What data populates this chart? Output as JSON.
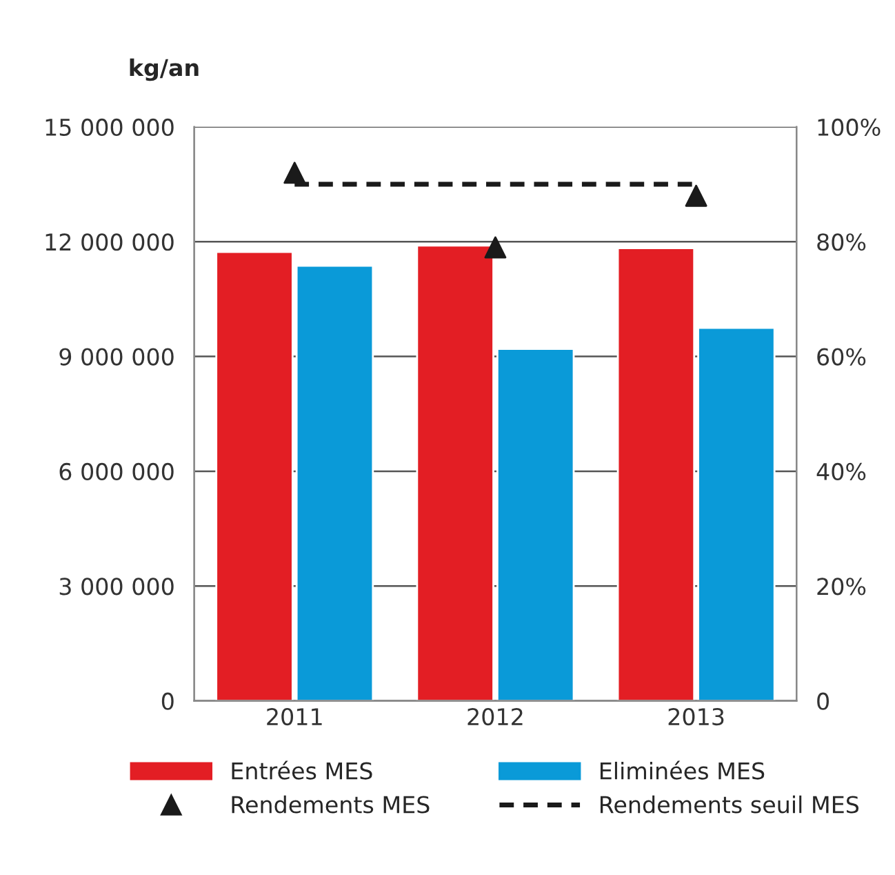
{
  "chart_data": {
    "type": "bar",
    "ylabel": "kg/an",
    "categories": [
      "2011",
      "2012",
      "2013"
    ],
    "series": [
      {
        "name": "Entrées MES",
        "color": "#e31e24",
        "values": [
          11730000,
          11900000,
          11830000
        ]
      },
      {
        "name": "Eliminées MES",
        "color": "#0a9ad8",
        "values": [
          11370000,
          9200000,
          9750000
        ]
      },
      {
        "name": "Rendements MES",
        "type": "scatter",
        "axis": "y2",
        "marker": "triangle",
        "color": "#1a1a1a",
        "values": [
          92,
          79,
          88
        ]
      },
      {
        "name": "Rendements seuil MES",
        "type": "line",
        "axis": "y2",
        "line_style": "dashed",
        "marker": "none",
        "color": "#1a1a1a",
        "values": [
          90,
          90,
          90
        ]
      }
    ],
    "ylim": [
      0,
      15000000
    ],
    "yticks": [
      {
        "value": 0,
        "label": "0"
      },
      {
        "value": 3000000,
        "label": "3 000 000"
      },
      {
        "value": 6000000,
        "label": "6 000 000"
      },
      {
        "value": 9000000,
        "label": "9 000 000"
      },
      {
        "value": 12000000,
        "label": "12 000 000"
      },
      {
        "value": 15000000,
        "label": "15 000 000"
      }
    ],
    "y2lim": [
      0,
      100
    ],
    "y2ticks": [
      {
        "value": 0,
        "label": "0"
      },
      {
        "value": 20,
        "label": "20%"
      },
      {
        "value": 40,
        "label": "40%"
      },
      {
        "value": 60,
        "label": "60%"
      },
      {
        "value": 80,
        "label": "80%"
      },
      {
        "value": 100,
        "label": "100%"
      }
    ],
    "grid": "y",
    "legend": "bottom"
  }
}
